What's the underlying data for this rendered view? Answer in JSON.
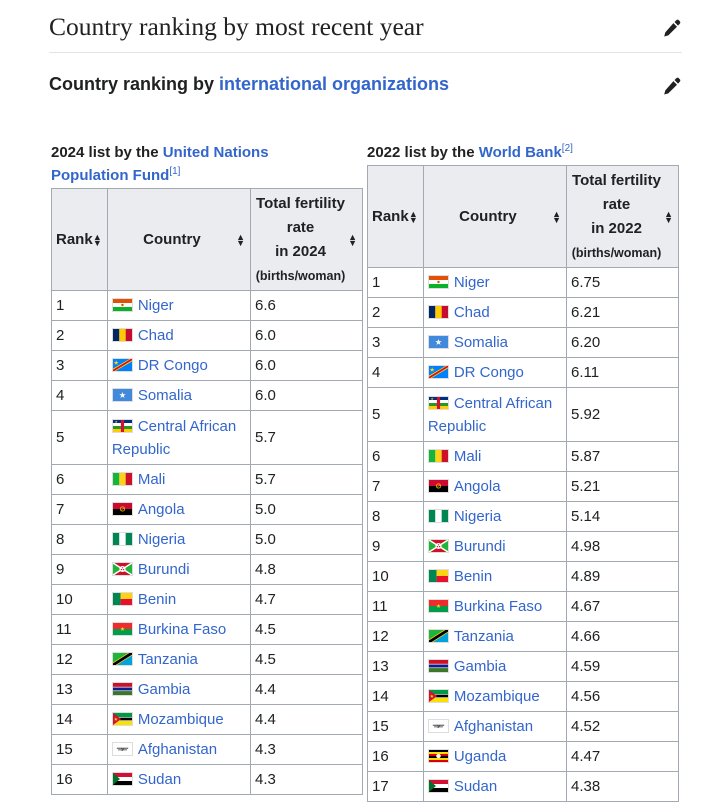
{
  "headings": {
    "h2_title": "Country ranking by most recent year",
    "h3_prefix": "Country ranking by ",
    "h3_link": "international organizations"
  },
  "icons": {
    "edit": "pencil-edit-icon"
  },
  "tables": {
    "left": {
      "caption_prefix": "2024 list by the ",
      "caption_link": "United Nations Population Fund",
      "caption_ref": "[1]",
      "headers": {
        "rank": "Rank",
        "country": "Country",
        "rate_l1": "Total fertility",
        "rate_l2": "rate",
        "rate_l3": "in 2024",
        "rate_l4": "(births/woman)"
      },
      "rows": [
        {
          "rank": "1",
          "country": "Niger",
          "rate": "6.6",
          "flag": "niger"
        },
        {
          "rank": "2",
          "country": "Chad",
          "rate": "6.0",
          "flag": "chad"
        },
        {
          "rank": "3",
          "country": "DR Congo",
          "rate": "6.0",
          "flag": "drcongo"
        },
        {
          "rank": "4",
          "country": "Somalia",
          "rate": "6.0",
          "flag": "somalia"
        },
        {
          "rank": "5",
          "country": "Central African Republic",
          "rate": "5.7",
          "flag": "car"
        },
        {
          "rank": "6",
          "country": "Mali",
          "rate": "5.7",
          "flag": "mali"
        },
        {
          "rank": "7",
          "country": "Angola",
          "rate": "5.0",
          "flag": "angola"
        },
        {
          "rank": "8",
          "country": "Nigeria",
          "rate": "5.0",
          "flag": "nigeria"
        },
        {
          "rank": "9",
          "country": "Burundi",
          "rate": "4.8",
          "flag": "burundi"
        },
        {
          "rank": "10",
          "country": "Benin",
          "rate": "4.7",
          "flag": "benin"
        },
        {
          "rank": "11",
          "country": "Burkina Faso",
          "rate": "4.5",
          "flag": "burkina"
        },
        {
          "rank": "12",
          "country": "Tanzania",
          "rate": "4.5",
          "flag": "tanzania"
        },
        {
          "rank": "13",
          "country": "Gambia",
          "rate": "4.4",
          "flag": "gambia"
        },
        {
          "rank": "14",
          "country": "Mozambique",
          "rate": "4.4",
          "flag": "mozambique"
        },
        {
          "rank": "15",
          "country": "Afghanistan",
          "rate": "4.3",
          "flag": "afghanistan"
        },
        {
          "rank": "16",
          "country": "Sudan",
          "rate": "4.3",
          "flag": "sudan"
        }
      ]
    },
    "right": {
      "caption_prefix": "2022 list by the ",
      "caption_link": "World Bank",
      "caption_ref": "[2]",
      "headers": {
        "rank": "Rank",
        "country": "Country",
        "rate_l1": "Total fertility",
        "rate_l2": "rate",
        "rate_l3": "in 2022",
        "rate_l4": "(births/woman)"
      },
      "rows": [
        {
          "rank": "1",
          "country": "Niger",
          "rate": "6.75",
          "flag": "niger"
        },
        {
          "rank": "2",
          "country": "Chad",
          "rate": "6.21",
          "flag": "chad"
        },
        {
          "rank": "3",
          "country": "Somalia",
          "rate": "6.20",
          "flag": "somalia"
        },
        {
          "rank": "4",
          "country": "DR Congo",
          "rate": "6.11",
          "flag": "drcongo"
        },
        {
          "rank": "5",
          "country": "Central African Republic",
          "rate": "5.92",
          "flag": "car"
        },
        {
          "rank": "6",
          "country": "Mali",
          "rate": "5.87",
          "flag": "mali"
        },
        {
          "rank": "7",
          "country": "Angola",
          "rate": "5.21",
          "flag": "angola"
        },
        {
          "rank": "8",
          "country": "Nigeria",
          "rate": "5.14",
          "flag": "nigeria"
        },
        {
          "rank": "9",
          "country": "Burundi",
          "rate": "4.98",
          "flag": "burundi"
        },
        {
          "rank": "10",
          "country": "Benin",
          "rate": "4.89",
          "flag": "benin"
        },
        {
          "rank": "11",
          "country": "Burkina Faso",
          "rate": "4.67",
          "flag": "burkina"
        },
        {
          "rank": "12",
          "country": "Tanzania",
          "rate": "4.66",
          "flag": "tanzania"
        },
        {
          "rank": "13",
          "country": "Gambia",
          "rate": "4.59",
          "flag": "gambia"
        },
        {
          "rank": "14",
          "country": "Mozambique",
          "rate": "4.56",
          "flag": "mozambique"
        },
        {
          "rank": "15",
          "country": "Afghanistan",
          "rate": "4.52",
          "flag": "afghanistan"
        },
        {
          "rank": "16",
          "country": "Uganda",
          "rate": "4.47",
          "flag": "uganda"
        },
        {
          "rank": "17",
          "country": "Sudan",
          "rate": "4.38",
          "flag": "sudan"
        }
      ]
    }
  },
  "colors": {
    "link": "#3366cc",
    "header_bg": "#eaecf0",
    "border": "#a2a9b1"
  }
}
